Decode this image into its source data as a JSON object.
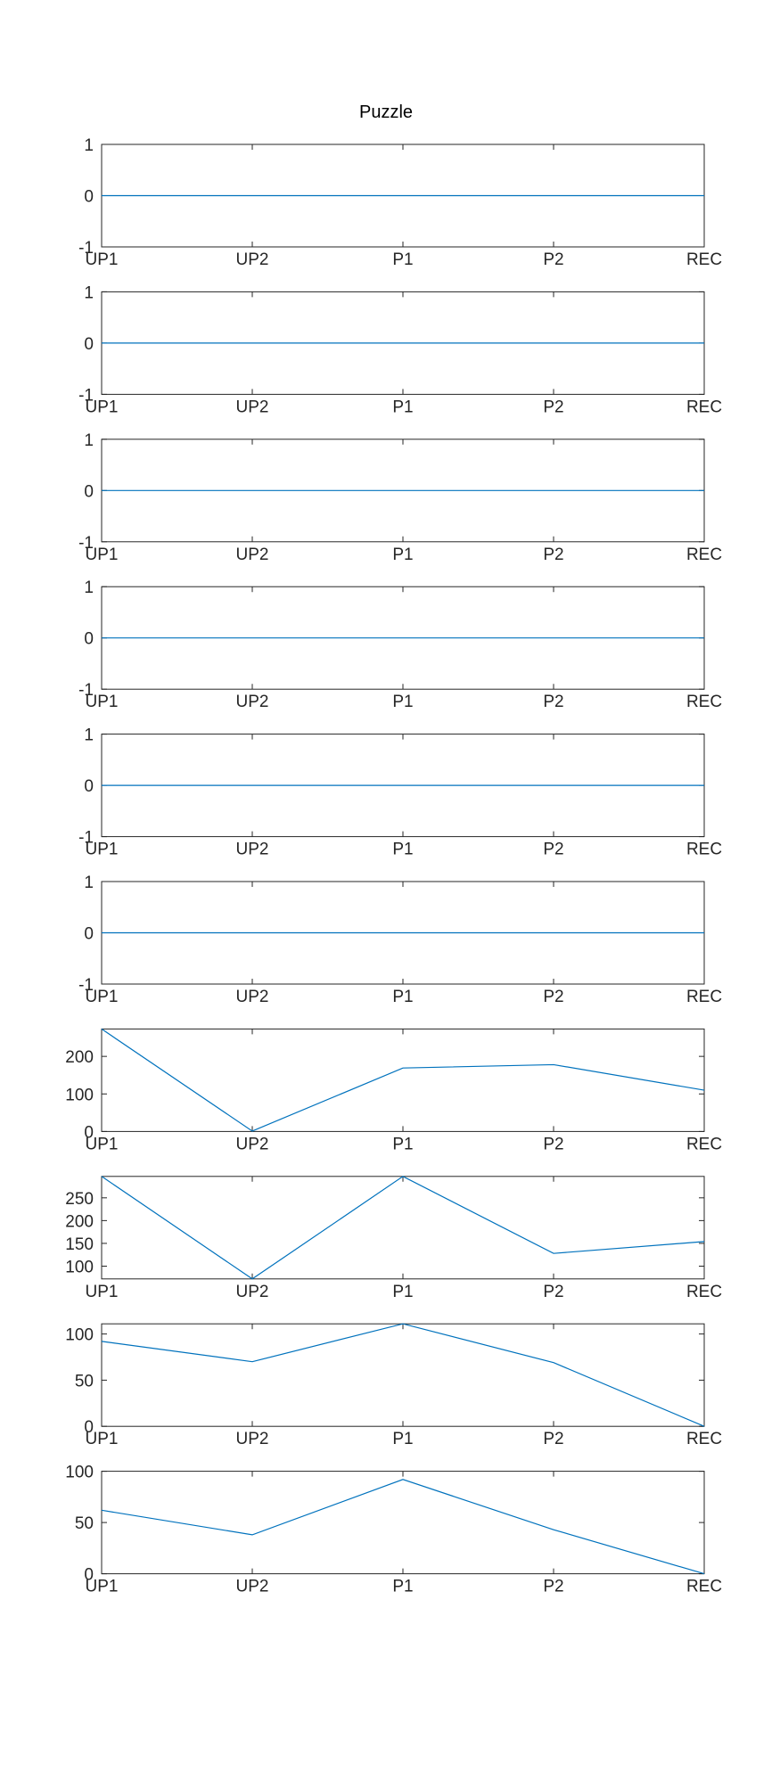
{
  "figure": {
    "title": "Puzzle",
    "line_color": "#0072BD"
  },
  "chart_data": [
    {
      "type": "line",
      "categories": [
        "UP1",
        "UP2",
        "P1",
        "P2",
        "REC"
      ],
      "series": [
        {
          "values": [
            0,
            0,
            0,
            0,
            0
          ]
        }
      ],
      "ylim": [
        -1,
        1
      ],
      "yticks": [
        -1,
        0,
        1
      ],
      "title": "Puzzle"
    },
    {
      "type": "line",
      "categories": [
        "UP1",
        "UP2",
        "P1",
        "P2",
        "REC"
      ],
      "series": [
        {
          "values": [
            0,
            0,
            0,
            0,
            0
          ]
        }
      ],
      "ylim": [
        -1,
        1
      ],
      "yticks": [
        -1,
        0,
        1
      ]
    },
    {
      "type": "line",
      "categories": [
        "UP1",
        "UP2",
        "P1",
        "P2",
        "REC"
      ],
      "series": [
        {
          "values": [
            0,
            0,
            0,
            0,
            0
          ]
        }
      ],
      "ylim": [
        -1,
        1
      ],
      "yticks": [
        -1,
        0,
        1
      ]
    },
    {
      "type": "line",
      "categories": [
        "UP1",
        "UP2",
        "P1",
        "P2",
        "REC"
      ],
      "series": [
        {
          "values": [
            0,
            0,
            0,
            0,
            0
          ]
        }
      ],
      "ylim": [
        -1,
        1
      ],
      "yticks": [
        -1,
        0,
        1
      ]
    },
    {
      "type": "line",
      "categories": [
        "UP1",
        "UP2",
        "P1",
        "P2",
        "REC"
      ],
      "series": [
        {
          "values": [
            0,
            0,
            0,
            0,
            0
          ]
        }
      ],
      "ylim": [
        -1,
        1
      ],
      "yticks": [
        -1,
        0,
        1
      ]
    },
    {
      "type": "line",
      "categories": [
        "UP1",
        "UP2",
        "P1",
        "P2",
        "REC"
      ],
      "series": [
        {
          "values": [
            0,
            0,
            0,
            0,
            0
          ]
        }
      ],
      "ylim": [
        -1,
        1
      ],
      "yticks": [
        -1,
        0,
        1
      ]
    },
    {
      "type": "line",
      "categories": [
        "UP1",
        "UP2",
        "P1",
        "P2",
        "REC"
      ],
      "series": [
        {
          "values": [
            273,
            1,
            169,
            178,
            110
          ]
        }
      ],
      "ylim": [
        0,
        273
      ],
      "yticks": [
        0,
        100,
        200
      ]
    },
    {
      "type": "line",
      "categories": [
        "UP1",
        "UP2",
        "P1",
        "P2",
        "REC"
      ],
      "series": [
        {
          "values": [
            297,
            72,
            297,
            128,
            154
          ]
        }
      ],
      "ylim": [
        72,
        297
      ],
      "yticks": [
        100,
        150,
        200,
        250
      ]
    },
    {
      "type": "line",
      "categories": [
        "UP1",
        "UP2",
        "P1",
        "P2",
        "REC"
      ],
      "series": [
        {
          "values": [
            92,
            70,
            111,
            69,
            0
          ]
        }
      ],
      "ylim": [
        0,
        111
      ],
      "yticks": [
        0,
        50,
        100
      ]
    },
    {
      "type": "line",
      "categories": [
        "UP1",
        "UP2",
        "P1",
        "P2",
        "REC"
      ],
      "series": [
        {
          "values": [
            62,
            38,
            92,
            43,
            0
          ]
        }
      ],
      "ylim": [
        0,
        100
      ],
      "yticks": [
        0,
        50,
        100
      ]
    }
  ]
}
